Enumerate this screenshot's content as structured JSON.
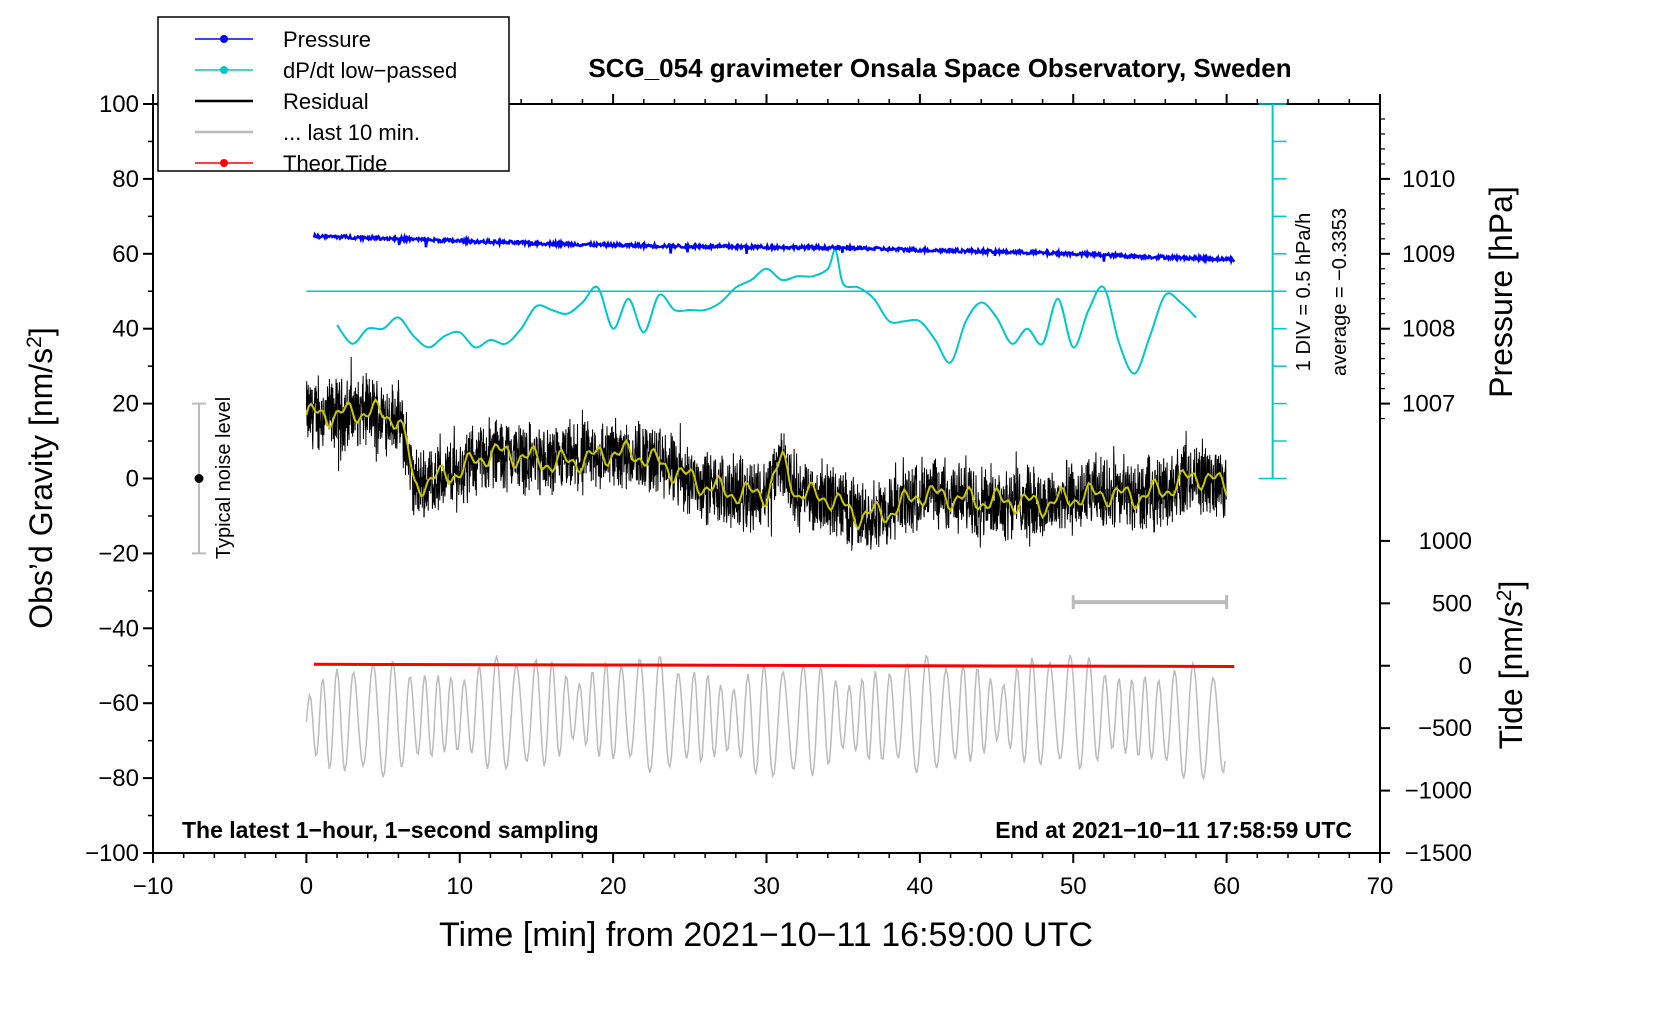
{
  "chart_data": {
    "type": "line",
    "title": "SCG_054 gravimeter Onsala Space Observatory, Sweden",
    "xlabel": "Time [min] from 2021−10−11 16:59:00 UTC",
    "ylabel_left_text": "Obs’d Gravity [nm/s",
    "ylabel_left_sup": "2",
    "ylabel_left_close": "]",
    "ylabel_pressure": "Pressure [hPa]",
    "ylabel_tide_text": "Tide [nm/s",
    "ylabel_tide_sup": "2",
    "ylabel_tide_close": "]",
    "xlim": [
      -10,
      70
    ],
    "ylim": [
      -100,
      100
    ],
    "x_ticks": [
      "−10",
      "0",
      "10",
      "20",
      "30",
      "40",
      "50",
      "60",
      "70"
    ],
    "x_tick_values": [
      -10,
      0,
      10,
      20,
      30,
      40,
      50,
      60,
      70
    ],
    "y_ticks": [
      "100",
      "80",
      "60",
      "40",
      "20",
      "0",
      "−20",
      "−40",
      "−60",
      "−80",
      "−100"
    ],
    "y_tick_values": [
      100,
      80,
      60,
      40,
      20,
      0,
      -20,
      -40,
      -60,
      -80,
      -100
    ],
    "pressure_axis": {
      "ticks": [
        "1010",
        "1009",
        "1008",
        "1007"
      ],
      "tick_values": [
        1010,
        1009,
        1008,
        1007
      ],
      "scale_note": "1 hPa = 20 gravity-axis units; 1007 hPa at y = 20"
    },
    "tide_axis": {
      "ticks": [
        "1000",
        "500",
        "0",
        "−500",
        "−1000",
        "−1500"
      ],
      "tick_values": [
        1000,
        500,
        0,
        -500,
        -1000,
        -1500
      ],
      "scale_note": "500 nm/s^2 = 16.7 gravity-axis units; 0 at y = -50"
    },
    "legend": {
      "position": "top-left",
      "entries": [
        {
          "label": "Pressure",
          "color": "#0000ff",
          "marker": true
        },
        {
          "label": "dP/dt low−passed",
          "color": "#00c8c8",
          "marker": true
        },
        {
          "label": "Residual",
          "color": "#000000",
          "marker": false
        },
        {
          "label": "... last 10 min.",
          "color": "#bbbbbb",
          "marker": false
        },
        {
          "label": "Theor.Tide",
          "color": "#ff0000",
          "marker": true
        }
      ]
    },
    "noise_bar": {
      "label": "Typical noise level",
      "x": -7,
      "y_center": 0,
      "y_range": [
        -20,
        20
      ]
    },
    "dpdt_scale": {
      "label_div": "1 DIV = 0.5 hPa/h",
      "label_avg": "average = −0.3353",
      "x": 63,
      "y_range": [
        0,
        100
      ],
      "baseline_y": 50,
      "division_units": 10
    },
    "last10_bar": {
      "x_range": [
        50,
        60
      ],
      "y": -33
    },
    "annotation_left": "The latest 1−hour, 1−second sampling",
    "annotation_right": "End at 2021−10−11 17:58:59 UTC",
    "series": [
      {
        "name": "Pressure",
        "color": "#0000ff",
        "y_axis": "gravity-scaled",
        "x": [
          0.5,
          5,
          10,
          15,
          20,
          25,
          30,
          35,
          40,
          45,
          50,
          55,
          60.5
        ],
        "y": [
          64.7,
          64.2,
          63.4,
          62.8,
          62.3,
          62.0,
          61.8,
          61.6,
          61.0,
          60.6,
          60.0,
          59.2,
          58.5
        ]
      },
      {
        "name": "dP/dt low−passed",
        "color": "#00c8c8",
        "y_axis": "gravity-scaled",
        "x": [
          2,
          3,
          4,
          5,
          6,
          7,
          8,
          9,
          10,
          11,
          12,
          13,
          14,
          15,
          16,
          17,
          18,
          19,
          20,
          21,
          22,
          23,
          24,
          25,
          26,
          27,
          28,
          29,
          30,
          31,
          32,
          33,
          34,
          34.5,
          35,
          36,
          37,
          38,
          39,
          40,
          41,
          42,
          43,
          44,
          45,
          46,
          47,
          48,
          49,
          50,
          51,
          52,
          53,
          54,
          55,
          56,
          57,
          58
        ],
        "y": [
          41,
          36,
          40,
          40,
          43,
          38,
          35,
          38,
          39,
          35,
          37,
          36,
          40,
          46,
          45,
          44,
          47,
          51,
          40,
          48,
          39,
          49,
          45,
          45,
          45,
          47,
          51,
          53,
          56,
          53,
          54,
          54,
          56,
          61,
          52,
          51,
          48,
          42,
          42,
          42,
          37,
          31,
          42,
          47,
          43,
          36,
          40,
          36,
          48,
          35,
          45,
          51,
          36,
          28,
          38,
          49,
          47,
          43
        ]
      },
      {
        "name": "Residual",
        "color": "#000000",
        "y_axis": "left",
        "x": [
          0,
          2,
          4,
          6,
          6.6,
          7,
          10,
          12,
          14,
          16,
          18,
          20,
          22,
          24,
          26,
          28,
          30,
          31,
          32,
          34,
          36,
          38,
          40,
          42,
          44,
          46,
          48,
          50,
          52,
          54,
          56,
          58,
          60
        ],
        "y": [
          17,
          17,
          18,
          16,
          8,
          -2,
          2,
          7,
          6,
          4,
          5,
          7,
          6,
          2,
          -2,
          -4,
          -4,
          5,
          -4,
          -5,
          -10,
          -9,
          -4,
          -5,
          -6,
          -6,
          -7,
          -5,
          -4,
          -5,
          -3,
          1,
          -2
        ]
      },
      {
        "name": "... last 10 min.",
        "color": "#bbbbbb",
        "y_axis": "left",
        "x": [
          0,
          10,
          20,
          30,
          40,
          50,
          60
        ],
        "y": [
          -65,
          -63,
          -62,
          -65,
          -63,
          -62,
          -66
        ]
      },
      {
        "name": "Theor.Tide",
        "color": "#ff0000",
        "y_axis": "left",
        "x": [
          0.5,
          10,
          20,
          30,
          40,
          50,
          60.5
        ],
        "y": [
          -49.6,
          -49.7,
          -49.8,
          -49.9,
          -50.0,
          -50.1,
          -50.2
        ]
      }
    ]
  }
}
